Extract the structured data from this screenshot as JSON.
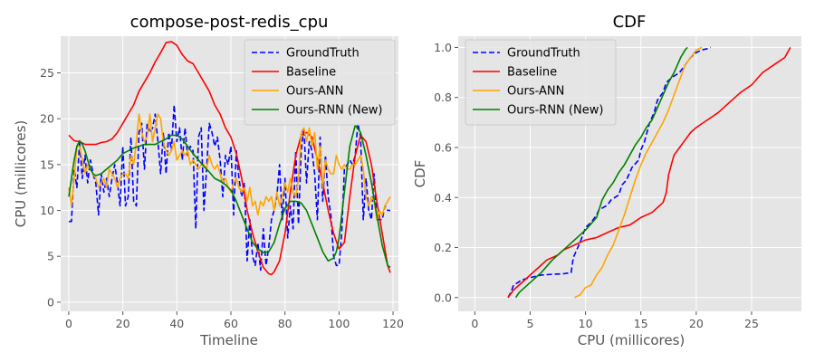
{
  "colors": {
    "GroundTruth": "#0000ff",
    "Baseline": "#ff0000",
    "Ours-ANN": "#ffa500",
    "Ours-RNN (New)": "#008000"
  },
  "chart_data": [
    {
      "type": "line",
      "title": "compose-post-redis_cpu",
      "xlabel": "Timeline",
      "ylabel": "CPU (millicores)",
      "xlim": [
        -3,
        122
      ],
      "ylim": [
        -1,
        29
      ],
      "xticks": [
        0,
        20,
        40,
        60,
        80,
        100,
        120
      ],
      "yticks": [
        0,
        5,
        10,
        15,
        20,
        25
      ],
      "grid": true,
      "legend": "top-right",
      "series": [
        {
          "name": "GroundTruth",
          "style": "dashed",
          "x": [
            0,
            1,
            2,
            3,
            4,
            5,
            6,
            7,
            8,
            9,
            10,
            11,
            12,
            13,
            14,
            15,
            16,
            17,
            18,
            19,
            20,
            21,
            22,
            23,
            24,
            25,
            26,
            27,
            28,
            29,
            30,
            31,
            32,
            33,
            34,
            35,
            36,
            37,
            38,
            39,
            40,
            41,
            42,
            43,
            44,
            45,
            46,
            47,
            48,
            49,
            50,
            51,
            52,
            53,
            54,
            55,
            56,
            57,
            58,
            59,
            60,
            61,
            62,
            63,
            64,
            65,
            66,
            67,
            68,
            69,
            70,
            71,
            72,
            73,
            74,
            75,
            76,
            77,
            78,
            79,
            80,
            81,
            82,
            83,
            84,
            85,
            86,
            87,
            88,
            89,
            90,
            91,
            92,
            93,
            94,
            95,
            96,
            97,
            98,
            99,
            100,
            101,
            102,
            103,
            104,
            105,
            106,
            107,
            108,
            109,
            110,
            111,
            112,
            113,
            114,
            115,
            116,
            117,
            118,
            119
          ],
          "y": [
            8.8,
            8.8,
            14.5,
            12.5,
            17.5,
            13.5,
            16,
            13,
            15.5,
            14,
            13,
            9.5,
            14,
            12,
            13.5,
            11.5,
            13.5,
            15,
            13,
            10.5,
            17,
            10.5,
            11.5,
            18,
            11,
            10.5,
            18.5,
            19.5,
            14.5,
            19.5,
            18.5,
            19,
            20.5,
            17.5,
            14,
            18.5,
            14,
            18.5,
            16.5,
            21.5,
            17.5,
            19,
            15.5,
            19,
            16,
            17,
            16.5,
            8,
            18,
            19,
            10,
            14.5,
            19.5,
            18.5,
            17,
            18,
            15.5,
            11.5,
            16,
            15,
            17,
            9.5,
            16.5,
            13.5,
            11.5,
            13,
            4.5,
            9,
            5,
            4,
            6.5,
            3.5,
            8,
            4,
            6,
            9,
            10,
            11.5,
            15,
            9,
            13.5,
            7,
            10.5,
            8,
            16.5,
            8.5,
            16.5,
            19,
            13,
            17.5,
            16.5,
            14,
            9,
            18,
            11,
            16,
            11.5,
            9.5,
            5,
            4,
            4,
            7.5,
            14.5,
            15,
            15.5,
            15,
            16,
            19.5,
            18,
            9,
            13.5,
            10,
            9,
            14,
            9,
            9,
            9,
            10.5,
            10,
            10
          ]
        },
        {
          "name": "Baseline",
          "style": "solid",
          "x": [
            0,
            2,
            4,
            6,
            8,
            10,
            12,
            14,
            16,
            18,
            20,
            22,
            24,
            26,
            28,
            30,
            32,
            34,
            36,
            38,
            40,
            42,
            44,
            46,
            48,
            50,
            52,
            54,
            56,
            58,
            60,
            62,
            64,
            66,
            68,
            70,
            72,
            74,
            75,
            76,
            78,
            80,
            82,
            84,
            86,
            88,
            90,
            92,
            94,
            96,
            98,
            100,
            102,
            104,
            106,
            108,
            110,
            112,
            114,
            116,
            118,
            119
          ],
          "y": [
            18.2,
            17.6,
            17.5,
            17.2,
            17.2,
            17.2,
            17.4,
            17.5,
            17.8,
            18.5,
            19.5,
            20.5,
            21.5,
            23,
            24,
            25,
            26.2,
            27.2,
            28.3,
            28.4,
            28,
            27,
            26.3,
            26,
            25,
            24,
            23,
            21.5,
            20.5,
            19,
            18,
            16.2,
            13.5,
            10,
            7.5,
            5.5,
            3.8,
            3.1,
            3,
            3.3,
            4.5,
            7.5,
            12,
            16,
            18.2,
            18.5,
            18,
            15.5,
            13,
            10,
            7.5,
            5.8,
            6.5,
            11.5,
            16,
            18.2,
            17.5,
            15,
            11,
            7.5,
            4,
            3.2
          ]
        },
        {
          "name": "Ours-ANN",
          "style": "solid",
          "x": [
            0,
            1,
            2,
            3,
            4,
            5,
            6,
            7,
            8,
            9,
            10,
            11,
            12,
            13,
            14,
            15,
            16,
            17,
            18,
            19,
            20,
            21,
            22,
            23,
            24,
            25,
            26,
            27,
            28,
            29,
            30,
            31,
            32,
            33,
            34,
            35,
            36,
            37,
            38,
            39,
            40,
            41,
            42,
            43,
            44,
            45,
            46,
            47,
            48,
            49,
            50,
            51,
            52,
            53,
            54,
            55,
            56,
            57,
            58,
            59,
            60,
            61,
            62,
            63,
            64,
            65,
            66,
            67,
            68,
            69,
            70,
            71,
            72,
            73,
            74,
            75,
            76,
            77,
            78,
            79,
            80,
            81,
            82,
            83,
            84,
            85,
            86,
            87,
            88,
            89,
            90,
            91,
            92,
            93,
            94,
            95,
            96,
            97,
            98,
            99,
            100,
            101,
            102,
            103,
            104,
            105,
            106,
            107,
            108,
            109,
            110,
            111,
            112,
            113,
            114,
            115,
            116,
            117,
            118,
            119
          ],
          "y": [
            12.5,
            10.5,
            13.5,
            17,
            17,
            15.5,
            14,
            15,
            14.5,
            14,
            13.5,
            12.5,
            13,
            13.5,
            12.5,
            14.5,
            14,
            13.5,
            12.5,
            13.5,
            14,
            14,
            13.5,
            16,
            15,
            17.5,
            20.5,
            18.5,
            17.5,
            18,
            20.5,
            17.5,
            19,
            20.5,
            20,
            17.5,
            16.5,
            16,
            16.5,
            17.5,
            15.5,
            16,
            16.5,
            16,
            16.5,
            15,
            15.5,
            15,
            14.5,
            15,
            15,
            14.5,
            16,
            15,
            14.5,
            15,
            14,
            13,
            13.5,
            12.5,
            12,
            13,
            13.5,
            12.5,
            12,
            12.5,
            11,
            12.5,
            10.5,
            11,
            9.5,
            11,
            10.5,
            11.5,
            11,
            11.5,
            10,
            12,
            10.5,
            11.5,
            13,
            12,
            13.5,
            12,
            11.5,
            13.5,
            18.5,
            19,
            17.5,
            19,
            17,
            18.5,
            14.5,
            17,
            12.5,
            15.5,
            14.5,
            14,
            14,
            16,
            15,
            14.5,
            15,
            14.5,
            14.5,
            15,
            15,
            15.5,
            16,
            14.5,
            11.5,
            10.5,
            11.5,
            11,
            9,
            10,
            9.5,
            10.5,
            11,
            11.5
          ]
        },
        {
          "name": "Ours-RNN (New)",
          "style": "solid",
          "x": [
            0,
            1,
            2,
            3,
            4,
            5,
            6,
            7,
            8,
            9,
            10,
            12,
            14,
            16,
            18,
            20,
            22,
            24,
            26,
            28,
            30,
            32,
            34,
            36,
            38,
            40,
            42,
            44,
            46,
            48,
            50,
            52,
            54,
            56,
            58,
            60,
            62,
            64,
            66,
            68,
            70,
            72,
            74,
            76,
            78,
            80,
            82,
            84,
            86,
            88,
            90,
            92,
            94,
            96,
            98,
            99,
            100,
            102,
            104,
            106,
            108,
            110,
            112,
            114,
            116,
            118,
            119
          ],
          "y": [
            11.5,
            13.5,
            15.5,
            17,
            17.6,
            17.2,
            16.5,
            15.5,
            14.5,
            14,
            13.8,
            14,
            14.5,
            15,
            15.5,
            16.2,
            16.5,
            16.8,
            17,
            17.2,
            17.2,
            17.2,
            17.5,
            17.8,
            18.2,
            18.2,
            17.8,
            17,
            16.2,
            15.5,
            14.8,
            14.2,
            13.5,
            13.2,
            12.8,
            12.2,
            11,
            9.5,
            8,
            6.5,
            5.8,
            5.4,
            5.5,
            6.5,
            8.5,
            10.2,
            11,
            11,
            10.8,
            10,
            8.5,
            7,
            5.5,
            4.5,
            4.8,
            5.5,
            7,
            12,
            17,
            19.3,
            18.5,
            16,
            13,
            9.5,
            6.2,
            4,
            3.8
          ]
        }
      ]
    },
    {
      "type": "line",
      "title": "CDF",
      "xlabel": "CPU (millicores)",
      "ylabel": "CDF",
      "xlim": [
        -1.5,
        29.5
      ],
      "ylim": [
        -0.055,
        1.045
      ],
      "xticks": [
        0,
        5,
        10,
        15,
        20,
        25
      ],
      "yticks": [
        0.0,
        0.2,
        0.4,
        0.6,
        0.8,
        1.0
      ],
      "grid": true,
      "legend": "top-left",
      "series": [
        {
          "name": "GroundTruth",
          "style": "dashed",
          "x": [
            3.0,
            3.3,
            3.5,
            3.9,
            4.2,
            5.0,
            5.5,
            6.0,
            7.0,
            8.0,
            8.7,
            8.9,
            9.2,
            9.5,
            10.0,
            10.5,
            11.0,
            11.2,
            12.0,
            12.3,
            13.0,
            13.3,
            13.7,
            14.2,
            14.8,
            15.0,
            15.3,
            15.8,
            16.2,
            16.5,
            17.0,
            17.3,
            17.8,
            18.5,
            19.0,
            19.5,
            20.0,
            20.5,
            21.0,
            21.3
          ],
          "y": [
            0.0,
            0.025,
            0.05,
            0.06,
            0.07,
            0.08,
            0.085,
            0.09,
            0.093,
            0.095,
            0.1,
            0.16,
            0.19,
            0.22,
            0.28,
            0.3,
            0.33,
            0.35,
            0.37,
            0.39,
            0.41,
            0.45,
            0.47,
            0.52,
            0.55,
            0.59,
            0.62,
            0.7,
            0.74,
            0.79,
            0.82,
            0.86,
            0.88,
            0.9,
            0.93,
            0.96,
            0.98,
            0.99,
            0.995,
            1.0
          ]
        },
        {
          "name": "Baseline",
          "style": "solid",
          "x": [
            3.0,
            3.5,
            4.0,
            4.5,
            5.0,
            5.5,
            6.0,
            6.5,
            7.0,
            7.5,
            8.0,
            9.0,
            10.0,
            11.0,
            12.0,
            13.0,
            14.0,
            15.0,
            16.0,
            17.0,
            17.3,
            17.5,
            17.8,
            18.0,
            18.5,
            19.0,
            19.5,
            20.0,
            21.0,
            22.0,
            23.0,
            24.0,
            25.0,
            26.0,
            27.0,
            28.0,
            28.5
          ],
          "y": [
            0.0,
            0.03,
            0.05,
            0.07,
            0.09,
            0.11,
            0.13,
            0.15,
            0.16,
            0.17,
            0.19,
            0.21,
            0.23,
            0.24,
            0.26,
            0.28,
            0.29,
            0.32,
            0.34,
            0.38,
            0.42,
            0.49,
            0.54,
            0.57,
            0.6,
            0.63,
            0.66,
            0.68,
            0.71,
            0.74,
            0.78,
            0.82,
            0.85,
            0.9,
            0.93,
            0.96,
            1.0
          ]
        },
        {
          "name": "Ours-ANN",
          "style": "solid",
          "x": [
            9.0,
            9.5,
            10.0,
            10.5,
            11.0,
            11.5,
            12.0,
            12.5,
            13.0,
            13.5,
            14.0,
            14.5,
            15.0,
            15.5,
            16.0,
            16.5,
            17.0,
            17.5,
            18.0,
            18.5,
            19.0,
            19.5,
            20.0,
            20.5
          ],
          "y": [
            0.0,
            0.01,
            0.04,
            0.05,
            0.09,
            0.12,
            0.17,
            0.21,
            0.27,
            0.33,
            0.4,
            0.47,
            0.53,
            0.58,
            0.62,
            0.66,
            0.7,
            0.75,
            0.81,
            0.87,
            0.93,
            0.96,
            0.99,
            1.0
          ]
        },
        {
          "name": "Ours-RNN (New)",
          "style": "solid",
          "x": [
            3.7,
            4.0,
            4.5,
            5.0,
            5.5,
            6.0,
            7.0,
            8.0,
            9.0,
            10.0,
            11.0,
            11.5,
            12.0,
            12.5,
            13.0,
            13.5,
            14.0,
            14.5,
            15.0,
            15.5,
            16.0,
            16.5,
            17.0,
            17.5,
            18.0,
            18.3,
            18.6,
            19.0,
            19.2
          ],
          "y": [
            0.0,
            0.02,
            0.04,
            0.06,
            0.08,
            0.1,
            0.15,
            0.19,
            0.23,
            0.27,
            0.32,
            0.39,
            0.43,
            0.46,
            0.5,
            0.53,
            0.57,
            0.61,
            0.64,
            0.68,
            0.71,
            0.76,
            0.81,
            0.86,
            0.9,
            0.93,
            0.96,
            0.99,
            1.0
          ]
        }
      ]
    }
  ]
}
